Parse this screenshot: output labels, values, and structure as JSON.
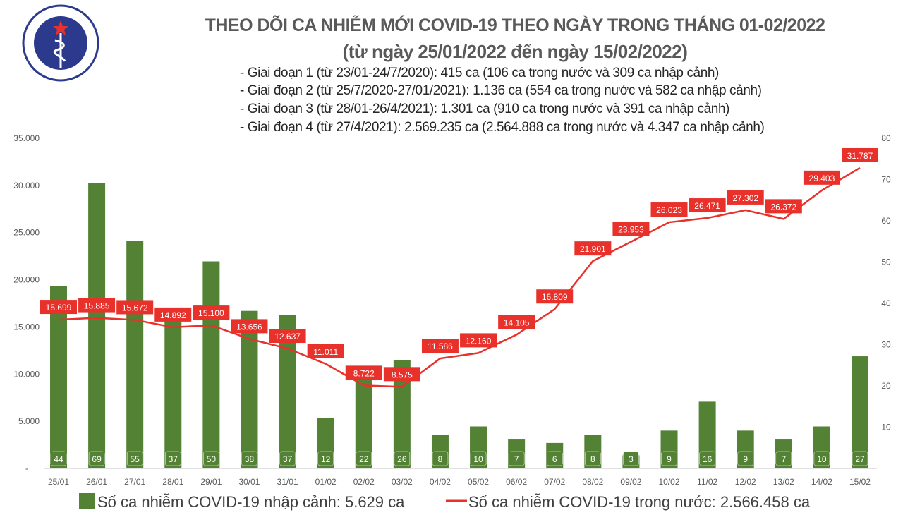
{
  "logo": {
    "top_text": "BỘ Y TẾ",
    "bottom_text": "MINISTRY OF HEALTH"
  },
  "chart_data": {
    "type": "bar+line",
    "title": "THEO DÕI CA NHIỄM MỚI COVID-19 THEO NGÀY TRONG THÁNG 01-02/2022",
    "subtitle": "(từ ngày 25/01/2022 đến ngày 15/02/2022)",
    "notes": [
      "- Giai đoạn 1 (từ 23/01-24/7/2020): 415 ca (106 ca trong nước và 309 ca nhập cảnh)",
      "- Giai đoạn 2 (từ 25/7/2020-27/01/2021): 1.136 ca (554 ca trong nước và 582 ca nhập cảnh)",
      "- Giai đoạn 3 (từ 28/01-26/4/2021): 1.301 ca (910 ca trong nước và 391 ca nhập cảnh)",
      "- Giai đoạn 4 (từ 27/4/2021): 2.569.235 ca (2.564.888 ca trong nước và 4.347 ca nhập cảnh)"
    ],
    "categories": [
      "25/01",
      "26/01",
      "27/01",
      "28/01",
      "29/01",
      "30/01",
      "31/01",
      "01/02",
      "02/02",
      "03/02",
      "04/02",
      "05/02",
      "06/02",
      "07/02",
      "08/02",
      "09/02",
      "10/02",
      "11/02",
      "12/02",
      "13/02",
      "14/02",
      "15/02"
    ],
    "left_axis": {
      "ylim": [
        0,
        35000
      ],
      "ticks": [
        "-",
        "5.000",
        "10.000",
        "15.000",
        "20.000",
        "25.000",
        "30.000",
        "35.000"
      ]
    },
    "right_axis": {
      "ylim": [
        0,
        80
      ],
      "ticks": [
        "10",
        "20",
        "30",
        "40",
        "50",
        "60",
        "70",
        "80"
      ]
    },
    "grid": false,
    "legend_position": "bottom",
    "series": [
      {
        "name": "Số ca nhiễm COVID-19 nhập cảnh: 5.629 ca",
        "type": "bar",
        "axis": "right",
        "color": "#548235",
        "values": [
          44,
          69,
          55,
          37,
          50,
          38,
          37,
          12,
          22,
          26,
          8,
          10,
          7,
          6,
          8,
          3,
          9,
          16,
          9,
          7,
          10,
          27
        ]
      },
      {
        "name": "Số ca nhiễm COVID-19 trong nước: 2.566.458 ca",
        "type": "line",
        "axis": "left",
        "color": "#e8312a",
        "values": [
          15699,
          15885,
          15672,
          14892,
          15100,
          13656,
          12637,
          11011,
          8722,
          8575,
          11586,
          12160,
          14105,
          16809,
          21901,
          23953,
          26023,
          26471,
          27302,
          26372,
          29403,
          31787
        ],
        "labels": [
          "15.699",
          "15.885",
          "15.672",
          "14.892",
          "15.100",
          "13.656",
          "12.637",
          "11.011",
          "8.722",
          "8.575",
          "11.586",
          "12.160",
          "14.105",
          "16.809",
          "21.901",
          "23.953",
          "26.023",
          "26.471",
          "27.302",
          "26.372",
          "29.403",
          "31.787"
        ]
      }
    ]
  }
}
